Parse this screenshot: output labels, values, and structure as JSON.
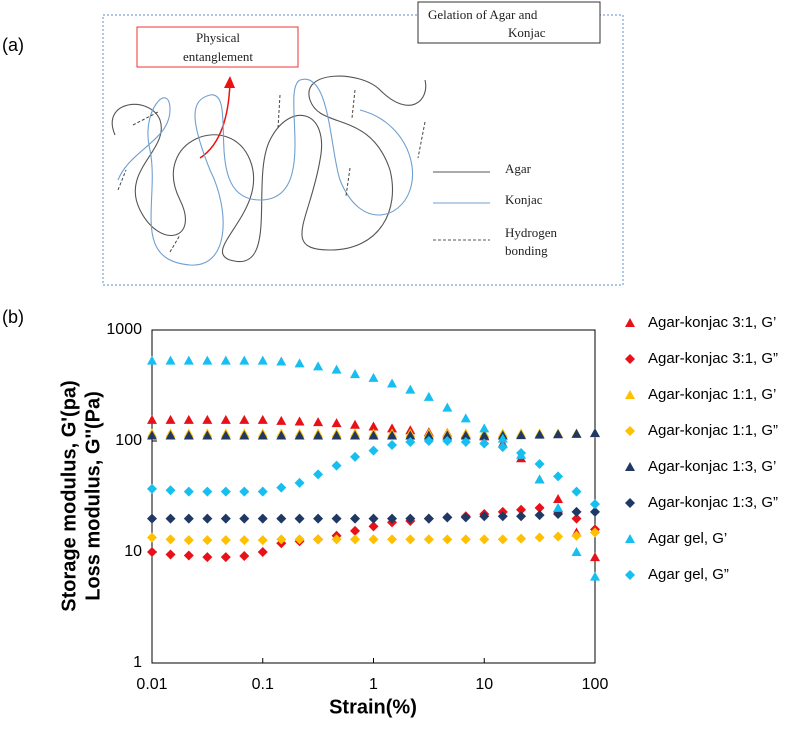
{
  "panel_labels": [
    "(a)",
    "(b)"
  ],
  "diagram": {
    "title": [
      "Gelation of Agar and",
      "Konjac"
    ],
    "annotation": [
      "Physical",
      "entanglement"
    ],
    "legend": [
      [
        "Agar"
      ],
      [
        "Konjac"
      ],
      [
        "Hydrogen",
        "bonding"
      ]
    ]
  },
  "chart_data": {
    "type": "scatter",
    "xlabel": "Strain(%)",
    "ylabel": [
      "Storage modulus, G'(pa)",
      "Loss modulus, G''(Pa)"
    ],
    "xscale": "log",
    "yscale": "log",
    "xlim": [
      0.01,
      100
    ],
    "ylim": [
      1,
      1000
    ],
    "xticks": [
      0.01,
      0.1,
      1,
      10,
      100
    ],
    "yticks": [
      1,
      10,
      100,
      1000
    ],
    "grid": false,
    "x": [
      0.01,
      0.0147,
      0.0215,
      0.0316,
      0.0464,
      0.0681,
      0.1,
      0.147,
      0.215,
      0.316,
      0.464,
      0.681,
      1,
      1.47,
      2.15,
      3.16,
      4.64,
      6.81,
      10,
      14.7,
      21.5,
      31.6,
      46.4,
      68.1,
      100
    ],
    "series": [
      {
        "name": "Agar-konjac 3:1, G’",
        "color": "#e8111a",
        "marker": "triangle",
        "values": [
          155,
          155,
          155,
          155,
          155,
          155,
          155,
          152,
          150,
          148,
          145,
          140,
          135,
          130,
          125,
          120,
          118,
          115,
          110,
          95,
          70,
          45,
          30,
          15,
          9
        ]
      },
      {
        "name": "Agar-konjac 3:1, G”",
        "color": "#e8111a",
        "marker": "diamond",
        "values": [
          10,
          9.5,
          9.3,
          9,
          9,
          9.2,
          10,
          12,
          12.5,
          13,
          14,
          15.5,
          17,
          18.5,
          19,
          20,
          20.5,
          21,
          22,
          23,
          24,
          25,
          23,
          20,
          16
        ]
      },
      {
        "name": "Agar-konjac 1:1, G’",
        "color": "#ffc000",
        "marker": "triangle",
        "values": [
          117,
          117,
          117,
          117,
          117,
          117,
          117,
          117,
          117,
          117,
          117,
          117,
          117,
          117,
          117,
          117,
          117,
          117,
          117,
          117,
          117,
          117,
          117,
          117,
          117
        ]
      },
      {
        "name": "Agar-konjac 1:1, G”",
        "color": "#ffc000",
        "marker": "diamond",
        "values": [
          13.5,
          13,
          12.8,
          12.8,
          12.8,
          12.8,
          12.8,
          13,
          13,
          13,
          13,
          13,
          13,
          13,
          13,
          13,
          13,
          13,
          13,
          13,
          13.2,
          13.5,
          13.8,
          14,
          15
        ]
      },
      {
        "name": "Agar-konjac 1:3, G’",
        "color": "#1f3864",
        "marker": "triangle",
        "values": [
          112,
          112,
          112,
          112,
          112,
          112,
          112,
          112,
          112,
          112,
          112,
          112,
          112,
          112,
          112,
          112,
          112,
          112,
          112,
          112,
          113,
          114,
          115,
          116,
          118
        ]
      },
      {
        "name": "Agar-konjac 1:3, G”",
        "color": "#1f3864",
        "marker": "diamond",
        "values": [
          20,
          20,
          20,
          20,
          20,
          20,
          20,
          20,
          20,
          20,
          20,
          20,
          20,
          20,
          20,
          20,
          20.5,
          20.5,
          21,
          21,
          21,
          21.5,
          22,
          23,
          23
        ]
      },
      {
        "name": "Agar gel, G’",
        "color": "#17bff0",
        "marker": "triangle",
        "values": [
          530,
          530,
          530,
          530,
          530,
          530,
          530,
          520,
          500,
          470,
          440,
          400,
          370,
          330,
          290,
          250,
          200,
          160,
          130,
          105,
          75,
          45,
          25,
          10,
          6
        ]
      },
      {
        "name": "Agar gel, G”",
        "color": "#17bff0",
        "marker": "diamond",
        "values": [
          37,
          36,
          35,
          35,
          35,
          35,
          35,
          38,
          42,
          50,
          60,
          72,
          82,
          92,
          98,
          100,
          100,
          98,
          95,
          88,
          78,
          62,
          48,
          35,
          27
        ]
      }
    ]
  }
}
